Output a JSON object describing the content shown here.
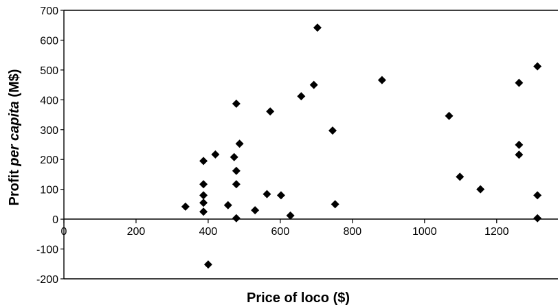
{
  "chart_data": {
    "type": "scatter",
    "title": "",
    "xlabel": "Price of loco ($)",
    "ylabel_parts": [
      "Profit ",
      "per capita",
      " (M$)"
    ],
    "xlim": [
      0,
      1370
    ],
    "ylim": [
      -200,
      700
    ],
    "x_ticks": [
      0,
      200,
      400,
      600,
      800,
      1000,
      1200
    ],
    "y_ticks": [
      -200,
      -100,
      0,
      100,
      200,
      300,
      400,
      500,
      600,
      700
    ],
    "grid": false,
    "marker": "diamond",
    "points": [
      {
        "x": 337,
        "y": 42
      },
      {
        "x": 387,
        "y": 195
      },
      {
        "x": 387,
        "y": 117
      },
      {
        "x": 387,
        "y": 80
      },
      {
        "x": 387,
        "y": 55
      },
      {
        "x": 387,
        "y": 25
      },
      {
        "x": 400,
        "y": -152
      },
      {
        "x": 420,
        "y": 217
      },
      {
        "x": 455,
        "y": 47
      },
      {
        "x": 472,
        "y": 208
      },
      {
        "x": 478,
        "y": 387
      },
      {
        "x": 478,
        "y": 162
      },
      {
        "x": 478,
        "y": 117
      },
      {
        "x": 478,
        "y": 3
      },
      {
        "x": 487,
        "y": 253
      },
      {
        "x": 530,
        "y": 30
      },
      {
        "x": 563,
        "y": 84
      },
      {
        "x": 572,
        "y": 361
      },
      {
        "x": 602,
        "y": 80
      },
      {
        "x": 628,
        "y": 12
      },
      {
        "x": 658,
        "y": 412
      },
      {
        "x": 693,
        "y": 450
      },
      {
        "x": 703,
        "y": 642
      },
      {
        "x": 745,
        "y": 297
      },
      {
        "x": 752,
        "y": 50
      },
      {
        "x": 882,
        "y": 466
      },
      {
        "x": 1068,
        "y": 346
      },
      {
        "x": 1098,
        "y": 142
      },
      {
        "x": 1155,
        "y": 100
      },
      {
        "x": 1262,
        "y": 457
      },
      {
        "x": 1262,
        "y": 249
      },
      {
        "x": 1262,
        "y": 216
      },
      {
        "x": 1313,
        "y": 512
      },
      {
        "x": 1313,
        "y": 80
      },
      {
        "x": 1313,
        "y": 3
      }
    ]
  }
}
